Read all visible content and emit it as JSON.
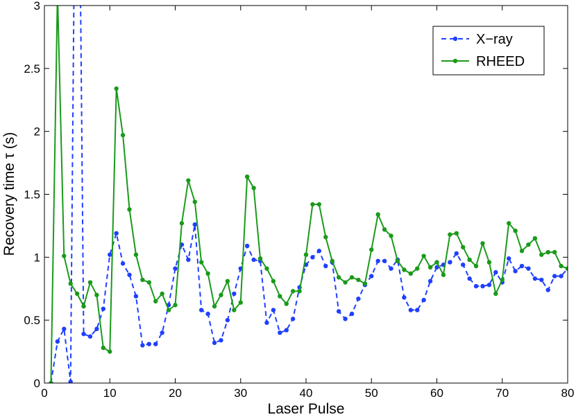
{
  "chart_data": {
    "type": "line",
    "xlabel": "Laser Pulse",
    "ylabel": "Recovery time  τ (s)",
    "xlim": [
      0,
      80
    ],
    "ylim": [
      0,
      3
    ],
    "xticks": [
      0,
      10,
      20,
      30,
      40,
      50,
      60,
      70,
      80
    ],
    "yticks": [
      0,
      0.5,
      1,
      1.5,
      2,
      2.5,
      3
    ],
    "ytick_labels": [
      "0",
      "0.5",
      "1",
      "1.5",
      "2",
      "2.5",
      "3"
    ],
    "grid": false,
    "legend_position": "top-right",
    "series": [
      {
        "name": "X−ray",
        "color": "#1f3fff",
        "line_style": "dashed",
        "marker": "dot",
        "x": [
          1,
          2,
          3,
          4,
          5,
          6,
          7,
          8,
          9,
          10,
          11,
          12,
          13,
          14,
          15,
          16,
          17,
          18,
          19,
          20,
          21,
          22,
          23,
          24,
          25,
          26,
          27,
          28,
          29,
          30,
          31,
          32,
          33,
          34,
          35,
          36,
          37,
          38,
          39,
          40,
          41,
          42,
          43,
          44,
          45,
          46,
          47,
          48,
          49,
          50,
          51,
          52,
          53,
          54,
          55,
          56,
          57,
          58,
          59,
          60,
          61,
          62,
          63,
          64,
          65,
          66,
          67,
          68,
          69,
          70,
          71,
          72,
          73,
          74,
          75,
          76,
          77,
          78,
          79,
          80
        ],
        "values": [
          0.0,
          0.33,
          0.43,
          0.01,
          6.0,
          0.39,
          0.37,
          0.43,
          0.59,
          1.02,
          1.19,
          0.95,
          0.86,
          0.69,
          0.3,
          0.31,
          0.31,
          0.4,
          0.62,
          0.91,
          1.1,
          0.98,
          1.26,
          0.58,
          0.55,
          0.32,
          0.34,
          0.5,
          0.71,
          0.91,
          1.09,
          0.98,
          0.97,
          0.48,
          0.58,
          0.4,
          0.42,
          0.51,
          0.76,
          0.94,
          1.0,
          1.05,
          0.93,
          0.96,
          0.57,
          0.51,
          0.55,
          0.67,
          0.78,
          0.85,
          0.97,
          0.97,
          0.91,
          0.98,
          0.68,
          0.58,
          0.58,
          0.66,
          0.81,
          0.92,
          0.94,
          0.96,
          1.03,
          0.94,
          0.83,
          0.77,
          0.77,
          0.78,
          0.88,
          0.8,
          0.99,
          0.89,
          0.93,
          0.91,
          0.83,
          0.82,
          0.74,
          0.85,
          0.85,
          0.91
        ]
      },
      {
        "name": "RHEED",
        "color": "#1a9a1a",
        "line_style": "solid",
        "marker": "dot",
        "x": [
          1,
          2,
          3,
          4,
          5,
          6,
          7,
          8,
          9,
          10,
          11,
          12,
          13,
          14,
          15,
          16,
          17,
          18,
          19,
          20,
          21,
          22,
          23,
          24,
          25,
          26,
          27,
          28,
          29,
          30,
          31,
          32,
          33,
          34,
          35,
          36,
          37,
          38,
          39,
          40,
          41,
          42,
          43,
          44,
          45,
          46,
          47,
          48,
          49,
          50,
          51,
          52,
          53,
          54,
          55,
          56,
          57,
          58,
          59,
          60,
          61,
          62,
          63,
          64,
          65,
          66,
          67,
          68,
          69,
          70,
          71,
          72,
          73,
          74,
          75,
          76,
          77,
          78,
          79,
          80
        ],
        "values": [
          0.0,
          3.1,
          1.01,
          0.79,
          0.71,
          0.61,
          0.8,
          0.7,
          0.28,
          0.25,
          2.34,
          1.97,
          1.38,
          1.02,
          0.82,
          0.8,
          0.65,
          0.71,
          0.58,
          0.62,
          1.27,
          1.61,
          1.44,
          0.96,
          0.87,
          0.61,
          0.7,
          0.81,
          0.58,
          0.64,
          1.64,
          1.55,
          0.99,
          0.91,
          0.81,
          0.69,
          0.63,
          0.73,
          0.73,
          1.02,
          1.42,
          1.42,
          1.16,
          0.97,
          0.84,
          0.8,
          0.84,
          0.82,
          0.79,
          1.06,
          1.34,
          1.22,
          1.17,
          0.97,
          0.9,
          0.87,
          0.91,
          1.01,
          0.92,
          0.96,
          0.86,
          1.18,
          1.19,
          1.08,
          0.98,
          0.93,
          1.11,
          0.96,
          0.71,
          0.82,
          1.27,
          1.21,
          1.05,
          1.1,
          1.15,
          1.02,
          1.04,
          1.04,
          0.93,
          0.91
        ]
      }
    ]
  }
}
